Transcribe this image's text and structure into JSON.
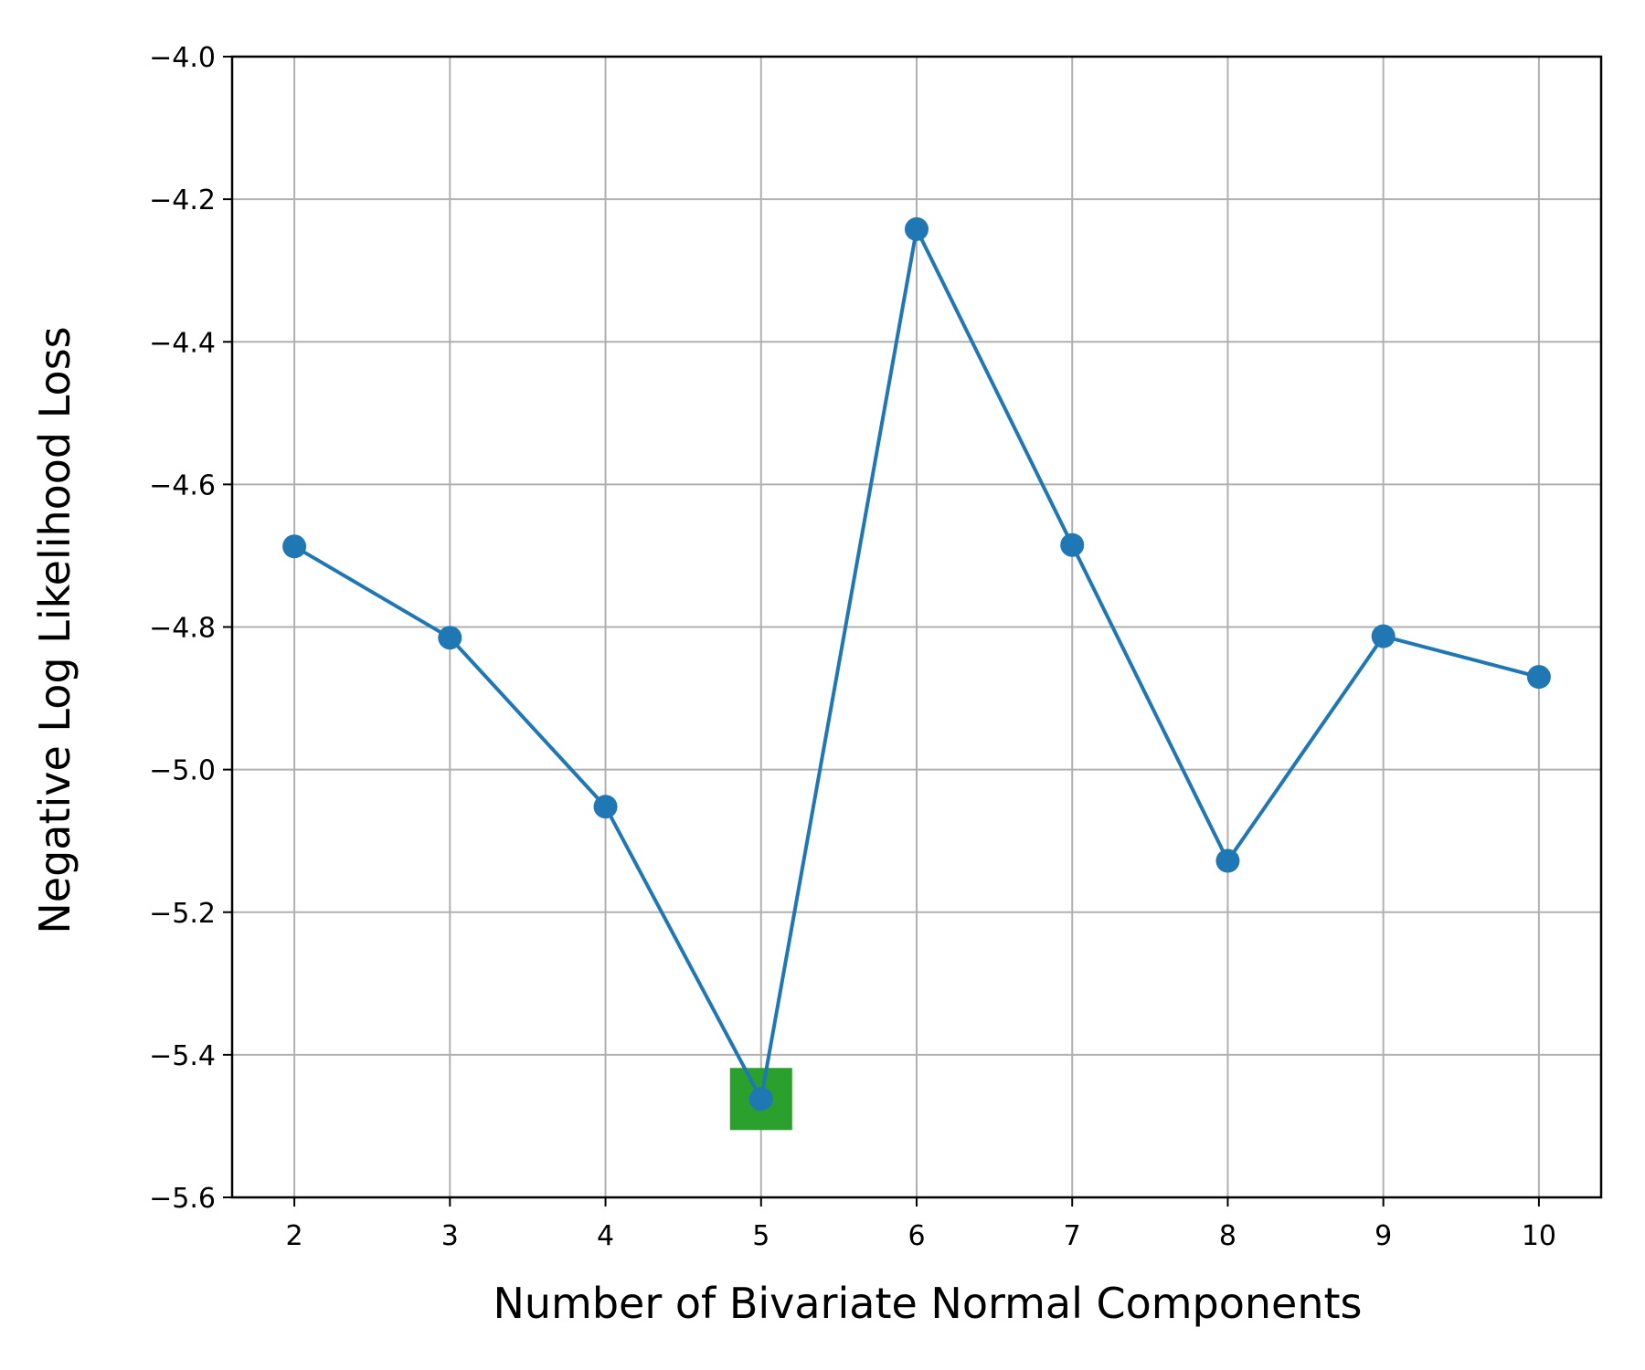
{
  "chart_data": {
    "type": "line",
    "title": "",
    "xlabel": "Number of Bivariate Normal Components",
    "ylabel": "Negative Log Likelihood Loss",
    "x": [
      2,
      3,
      4,
      5,
      6,
      7,
      8,
      9,
      10
    ],
    "series": [
      {
        "values": [
          -4.687,
          -4.815,
          -5.052,
          -5.462,
          -4.242,
          -4.685,
          -5.128,
          -4.813,
          -4.87
        ],
        "color": "#1f77b4",
        "marker": "circle"
      }
    ],
    "highlight": {
      "x": 5,
      "y": -5.462,
      "marker": "square",
      "color": "#2ca02c"
    },
    "xlim": [
      1.6,
      10.4
    ],
    "ylim": [
      -5.6,
      -4.0
    ],
    "xticks": [
      2,
      3,
      4,
      5,
      6,
      7,
      8,
      9,
      10
    ],
    "xtick_labels": [
      "2",
      "3",
      "4",
      "5",
      "6",
      "7",
      "8",
      "9",
      "10"
    ],
    "yticks": [
      -4.0,
      -4.2,
      -4.4,
      -4.6,
      -4.8,
      -5.0,
      -5.2,
      -5.4,
      -5.6
    ],
    "ytick_labels": [
      "−4.0",
      "−4.2",
      "−4.4",
      "−4.6",
      "−4.8",
      "−5.0",
      "−5.2",
      "−5.4",
      "−5.6"
    ],
    "grid": true,
    "legend": "none"
  }
}
